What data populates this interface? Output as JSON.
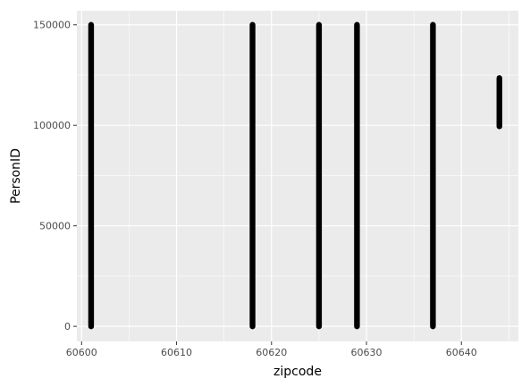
{
  "chart_data": {
    "type": "scatter",
    "title": "",
    "xlabel": "zipcode",
    "ylabel": "PersonID",
    "xlim": [
      60599.5,
      60646
    ],
    "ylim": [
      -7500,
      157000
    ],
    "x_ticks": [
      60600,
      60610,
      60620,
      60630,
      60640
    ],
    "y_ticks": [
      0,
      50000,
      100000,
      150000
    ],
    "x_tick_labels": [
      "60600",
      "60610",
      "60620",
      "60630",
      "60640"
    ],
    "y_tick_labels": [
      "0",
      "50000",
      "100000",
      "150000"
    ],
    "grid": true,
    "legend": "none",
    "colors": {
      "panel": "#ebebeb",
      "grid": "#ffffff",
      "point": "#000000",
      "tick_text": "#4d4d4d",
      "tick_mark": "#333333"
    },
    "series": [
      {
        "points": [
          {
            "x": 60601,
            "y_min": 0,
            "y_max": 150000
          },
          {
            "x": 60618,
            "y_min": 0,
            "y_max": 150000
          },
          {
            "x": 60625,
            "y_min": 0,
            "y_max": 150000
          },
          {
            "x": 60629,
            "y_min": 0,
            "y_max": 150000
          },
          {
            "x": 60637,
            "y_min": 0,
            "y_max": 150000
          },
          {
            "x": 60644,
            "y_min": 99500,
            "y_max": 123500
          }
        ]
      }
    ]
  }
}
